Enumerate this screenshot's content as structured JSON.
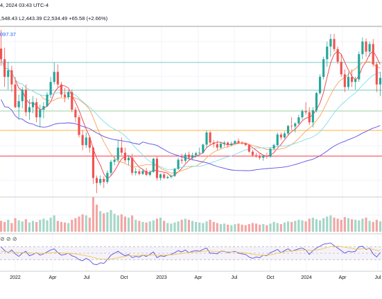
{
  "header": {
    "line": "4, 2024 03:43 UTC-4",
    "ohlc_text": ",548.43   L2,443.39   C2,534.49   +65.58 (+2.66%)"
  },
  "price_tag": "097.37",
  "colors": {
    "up": "#26a69a",
    "down": "#ef5350",
    "vol_up": "#a5d6c8",
    "vol_down": "#f3a5a3",
    "ma_fast": "#f23645",
    "ma_mid": "#f7a254",
    "ma_slow": "#7fdcef",
    "ma_long": "#5b4fe0",
    "rsi": "#5b4fe0",
    "rsi_ma": "#f2c94c",
    "level_red": "#f23645",
    "level_teal": "#4cb7a8",
    "level_green": "#81c784",
    "level_orange": "#ff9800",
    "level_gray": "#9e9e9e"
  },
  "chart_data": [
    {
      "type": "candlestick",
      "panel": "price",
      "x_ticks": [
        "2022",
        "Apr",
        "Jul",
        "Oct",
        "2023",
        "Apr",
        "Jul",
        "Oct",
        "2024",
        "Apr",
        "Jul"
      ],
      "grid": true,
      "candles": [
        {
          "o": 3760,
          "h": 4130,
          "l": 3420,
          "c": 3550
        },
        {
          "o": 3550,
          "h": 3780,
          "l": 3000,
          "c": 3200
        },
        {
          "o": 3200,
          "h": 3500,
          "l": 2950,
          "c": 3330
        },
        {
          "o": 3330,
          "h": 3420,
          "l": 2900,
          "c": 3050
        },
        {
          "o": 3050,
          "h": 3200,
          "l": 2580,
          "c": 2600
        },
        {
          "o": 2600,
          "h": 2850,
          "l": 2350,
          "c": 2720
        },
        {
          "o": 2720,
          "h": 3000,
          "l": 2580,
          "c": 2950
        },
        {
          "o": 2950,
          "h": 3050,
          "l": 2420,
          "c": 2500
        },
        {
          "o": 2500,
          "h": 2760,
          "l": 2350,
          "c": 2600
        },
        {
          "o": 2600,
          "h": 2820,
          "l": 2480,
          "c": 2700
        },
        {
          "o": 2700,
          "h": 2780,
          "l": 2300,
          "c": 2400
        },
        {
          "o": 2400,
          "h": 2650,
          "l": 2200,
          "c": 2550
        },
        {
          "o": 2550,
          "h": 2700,
          "l": 2380,
          "c": 2620
        },
        {
          "o": 2620,
          "h": 2900,
          "l": 2600,
          "c": 2850
        },
        {
          "o": 2850,
          "h": 3200,
          "l": 2780,
          "c": 3100
        },
        {
          "o": 3100,
          "h": 3480,
          "l": 3050,
          "c": 3300
        },
        {
          "o": 3300,
          "h": 3450,
          "l": 3000,
          "c": 3050
        },
        {
          "o": 3050,
          "h": 3100,
          "l": 2800,
          "c": 2850
        },
        {
          "o": 2850,
          "h": 2980,
          "l": 2700,
          "c": 2800
        },
        {
          "o": 2800,
          "h": 2940,
          "l": 2750,
          "c": 2900
        },
        {
          "o": 2900,
          "h": 2950,
          "l": 2500,
          "c": 2550
        },
        {
          "o": 2550,
          "h": 2600,
          "l": 2300,
          "c": 2400
        },
        {
          "o": 2400,
          "h": 2450,
          "l": 2000,
          "c": 2050
        },
        {
          "o": 2050,
          "h": 2150,
          "l": 1750,
          "c": 1850
        },
        {
          "o": 1850,
          "h": 2100,
          "l": 1800,
          "c": 2000
        },
        {
          "o": 2000,
          "h": 2020,
          "l": 1700,
          "c": 1800
        },
        {
          "o": 1800,
          "h": 1820,
          "l": 1080,
          "c": 1200
        },
        {
          "o": 1200,
          "h": 1250,
          "l": 900,
          "c": 1100
        },
        {
          "o": 1100,
          "h": 1250,
          "l": 1050,
          "c": 1180
        },
        {
          "o": 1180,
          "h": 1230,
          "l": 1000,
          "c": 1120
        },
        {
          "o": 1120,
          "h": 1350,
          "l": 1080,
          "c": 1300
        },
        {
          "o": 1300,
          "h": 1560,
          "l": 1250,
          "c": 1520
        },
        {
          "o": 1520,
          "h": 1620,
          "l": 1450,
          "c": 1560
        },
        {
          "o": 1560,
          "h": 1950,
          "l": 1500,
          "c": 1800
        },
        {
          "o": 1800,
          "h": 2000,
          "l": 1650,
          "c": 1700
        },
        {
          "o": 1700,
          "h": 1800,
          "l": 1500,
          "c": 1550
        },
        {
          "o": 1550,
          "h": 1650,
          "l": 1450,
          "c": 1600
        },
        {
          "o": 1600,
          "h": 1680,
          "l": 1250,
          "c": 1300
        },
        {
          "o": 1300,
          "h": 1400,
          "l": 1250,
          "c": 1330
        },
        {
          "o": 1330,
          "h": 1380,
          "l": 1250,
          "c": 1280
        },
        {
          "o": 1280,
          "h": 1380,
          "l": 1260,
          "c": 1340
        },
        {
          "o": 1340,
          "h": 1400,
          "l": 1240,
          "c": 1260
        },
        {
          "o": 1260,
          "h": 1350,
          "l": 1230,
          "c": 1320
        },
        {
          "o": 1320,
          "h": 1600,
          "l": 1300,
          "c": 1580
        },
        {
          "o": 1580,
          "h": 1620,
          "l": 1150,
          "c": 1200
        },
        {
          "o": 1200,
          "h": 1290,
          "l": 1150,
          "c": 1270
        },
        {
          "o": 1270,
          "h": 1300,
          "l": 1180,
          "c": 1200
        },
        {
          "o": 1200,
          "h": 1250,
          "l": 1180,
          "c": 1220
        },
        {
          "o": 1220,
          "h": 1270,
          "l": 1190,
          "c": 1240
        },
        {
          "o": 1240,
          "h": 1400,
          "l": 1220,
          "c": 1380
        },
        {
          "o": 1380,
          "h": 1600,
          "l": 1360,
          "c": 1560
        },
        {
          "o": 1560,
          "h": 1680,
          "l": 1480,
          "c": 1540
        },
        {
          "o": 1540,
          "h": 1700,
          "l": 1500,
          "c": 1660
        },
        {
          "o": 1660,
          "h": 1720,
          "l": 1560,
          "c": 1600
        },
        {
          "o": 1600,
          "h": 1700,
          "l": 1550,
          "c": 1650
        },
        {
          "o": 1650,
          "h": 1720,
          "l": 1600,
          "c": 1690
        },
        {
          "o": 1690,
          "h": 1800,
          "l": 1650,
          "c": 1700
        },
        {
          "o": 1700,
          "h": 1880,
          "l": 1680,
          "c": 1860
        },
        {
          "o": 1860,
          "h": 2140,
          "l": 1800,
          "c": 2100
        },
        {
          "o": 2100,
          "h": 2130,
          "l": 1850,
          "c": 1900
        },
        {
          "o": 1900,
          "h": 1950,
          "l": 1800,
          "c": 1870
        },
        {
          "o": 1870,
          "h": 1940,
          "l": 1750,
          "c": 1800
        },
        {
          "o": 1800,
          "h": 1900,
          "l": 1780,
          "c": 1880
        },
        {
          "o": 1880,
          "h": 1930,
          "l": 1820,
          "c": 1900
        },
        {
          "o": 1900,
          "h": 1920,
          "l": 1800,
          "c": 1850
        },
        {
          "o": 1850,
          "h": 1920,
          "l": 1830,
          "c": 1880
        },
        {
          "o": 1880,
          "h": 1950,
          "l": 1860,
          "c": 1930
        },
        {
          "o": 1930,
          "h": 1980,
          "l": 1880,
          "c": 1900
        },
        {
          "o": 1900,
          "h": 1930,
          "l": 1860,
          "c": 1880
        },
        {
          "o": 1880,
          "h": 1900,
          "l": 1830,
          "c": 1850
        },
        {
          "o": 1850,
          "h": 1870,
          "l": 1700,
          "c": 1720
        },
        {
          "o": 1720,
          "h": 1760,
          "l": 1620,
          "c": 1650
        },
        {
          "o": 1650,
          "h": 1700,
          "l": 1600,
          "c": 1640
        },
        {
          "o": 1640,
          "h": 1680,
          "l": 1560,
          "c": 1600
        },
        {
          "o": 1600,
          "h": 1660,
          "l": 1540,
          "c": 1640
        },
        {
          "o": 1640,
          "h": 1700,
          "l": 1580,
          "c": 1620
        },
        {
          "o": 1620,
          "h": 1800,
          "l": 1600,
          "c": 1780
        },
        {
          "o": 1780,
          "h": 1880,
          "l": 1750,
          "c": 1850
        },
        {
          "o": 1850,
          "h": 2100,
          "l": 1830,
          "c": 2060
        },
        {
          "o": 2060,
          "h": 2100,
          "l": 1950,
          "c": 2000
        },
        {
          "o": 2000,
          "h": 2120,
          "l": 1980,
          "c": 2080
        },
        {
          "o": 2080,
          "h": 2250,
          "l": 2050,
          "c": 2230
        },
        {
          "o": 2230,
          "h": 2400,
          "l": 2150,
          "c": 2220
        },
        {
          "o": 2220,
          "h": 2300,
          "l": 2100,
          "c": 2280
        },
        {
          "o": 2280,
          "h": 2450,
          "l": 2250,
          "c": 2400
        },
        {
          "o": 2400,
          "h": 2560,
          "l": 2350,
          "c": 2520
        },
        {
          "o": 2520,
          "h": 2700,
          "l": 2450,
          "c": 2500
        },
        {
          "o": 2500,
          "h": 2600,
          "l": 2250,
          "c": 2300
        },
        {
          "o": 2300,
          "h": 2600,
          "l": 2200,
          "c": 2540
        },
        {
          "o": 2540,
          "h": 2900,
          "l": 2500,
          "c": 2880
        },
        {
          "o": 2880,
          "h": 3250,
          "l": 2850,
          "c": 3200
        },
        {
          "o": 3200,
          "h": 3600,
          "l": 3150,
          "c": 3550
        },
        {
          "o": 3550,
          "h": 3900,
          "l": 3400,
          "c": 3800
        },
        {
          "o": 3800,
          "h": 4050,
          "l": 3600,
          "c": 3950
        },
        {
          "o": 3950,
          "h": 4050,
          "l": 3700,
          "c": 3750
        },
        {
          "o": 3750,
          "h": 3800,
          "l": 3450,
          "c": 3500
        },
        {
          "o": 3500,
          "h": 3650,
          "l": 3200,
          "c": 3250
        },
        {
          "o": 3250,
          "h": 3350,
          "l": 2900,
          "c": 3000
        },
        {
          "o": 3000,
          "h": 3300,
          "l": 2950,
          "c": 3200
        },
        {
          "o": 3200,
          "h": 3350,
          "l": 3000,
          "c": 3100
        },
        {
          "o": 3100,
          "h": 3200,
          "l": 2950,
          "c": 3150
        },
        {
          "o": 3150,
          "h": 3700,
          "l": 3100,
          "c": 3650
        },
        {
          "o": 3650,
          "h": 3980,
          "l": 3550,
          "c": 3900
        },
        {
          "o": 3900,
          "h": 3960,
          "l": 3600,
          "c": 3700
        },
        {
          "o": 3700,
          "h": 3900,
          "l": 3600,
          "c": 3850
        },
        {
          "o": 3850,
          "h": 3950,
          "l": 3400,
          "c": 3450
        },
        {
          "o": 3450,
          "h": 3500,
          "l": 2900,
          "c": 3050
        },
        {
          "o": 3050,
          "h": 3300,
          "l": 2820,
          "c": 3180
        }
      ],
      "moving_averages": [
        "ma_fast",
        "ma_mid",
        "ma_slow",
        "ma_long"
      ]
    },
    {
      "type": "bar",
      "panel": "volume",
      "values": [
        20,
        18,
        22,
        16,
        25,
        21,
        19,
        23,
        17,
        20,
        18,
        22,
        24,
        21,
        26,
        30,
        20,
        18,
        17,
        16,
        22,
        25,
        28,
        32,
        30,
        26,
        64,
        50,
        38,
        34,
        36,
        40,
        33,
        30,
        32,
        28,
        26,
        30,
        22,
        20,
        18,
        17,
        19,
        21,
        24,
        26,
        20,
        16,
        15,
        17,
        19,
        22,
        24,
        22,
        20,
        18,
        17,
        16,
        19,
        22,
        18,
        16,
        14,
        15,
        13,
        12,
        14,
        15,
        13,
        12,
        14,
        16,
        15,
        13,
        14,
        12,
        15,
        18,
        16,
        14,
        17,
        19,
        18,
        20,
        22,
        21,
        19,
        24,
        26,
        23,
        21,
        25,
        28,
        30,
        26,
        24,
        22,
        27,
        25,
        23,
        22,
        21,
        24,
        26,
        20,
        18,
        22,
        19
      ]
    },
    {
      "type": "line",
      "panel": "rsi",
      "y_range": [
        0,
        100
      ],
      "series": [
        {
          "key": "rsi",
          "values": [
            70,
            58,
            52,
            60,
            48,
            40,
            50,
            56,
            42,
            46,
            52,
            44,
            48,
            54,
            60,
            64,
            52,
            44,
            46,
            50,
            42,
            38,
            30,
            26,
            34,
            28,
            16,
            14,
            20,
            18,
            30,
            44,
            50,
            56,
            48,
            42,
            46,
            36,
            40,
            38,
            44,
            40,
            46,
            54,
            36,
            42,
            40,
            44,
            46,
            52,
            58,
            54,
            60,
            52,
            56,
            58,
            56,
            62,
            66,
            50,
            50,
            48,
            56,
            56,
            52,
            54,
            56,
            50,
            48,
            46,
            38,
            34,
            38,
            36,
            44,
            42,
            52,
            56,
            62,
            52,
            58,
            64,
            56,
            60,
            64,
            66,
            60,
            46,
            58,
            66,
            72,
            78,
            80,
            82,
            74,
            66,
            58,
            50,
            56,
            54,
            56,
            70,
            72,
            62,
            66,
            48,
            38,
            52
          ]
        },
        {
          "key": "rsi_ma",
          "values": [
            56,
            55,
            54,
            54,
            53,
            52,
            52,
            52,
            51,
            50,
            50,
            50,
            50,
            50,
            51,
            52,
            52,
            51,
            50,
            50,
            49,
            48,
            46,
            44,
            42,
            40,
            37,
            34,
            32,
            31,
            31,
            32,
            34,
            36,
            38,
            40,
            42,
            42,
            43,
            43,
            44,
            44,
            44,
            45,
            44,
            44,
            44,
            44,
            45,
            46,
            48,
            49,
            51,
            52,
            53,
            54,
            55,
            56,
            57,
            57,
            56,
            55,
            55,
            55,
            54,
            54,
            54,
            53,
            52,
            51,
            49,
            47,
            45,
            44,
            44,
            44,
            45,
            47,
            50,
            52,
            54,
            56,
            57,
            58,
            59,
            60,
            60,
            59,
            59,
            60,
            62,
            65,
            68,
            71,
            72,
            72,
            71,
            69,
            67,
            65,
            63,
            63,
            64,
            64,
            64,
            62,
            59,
            57
          ]
        }
      ],
      "band": [
        30,
        70
      ]
    }
  ]
}
